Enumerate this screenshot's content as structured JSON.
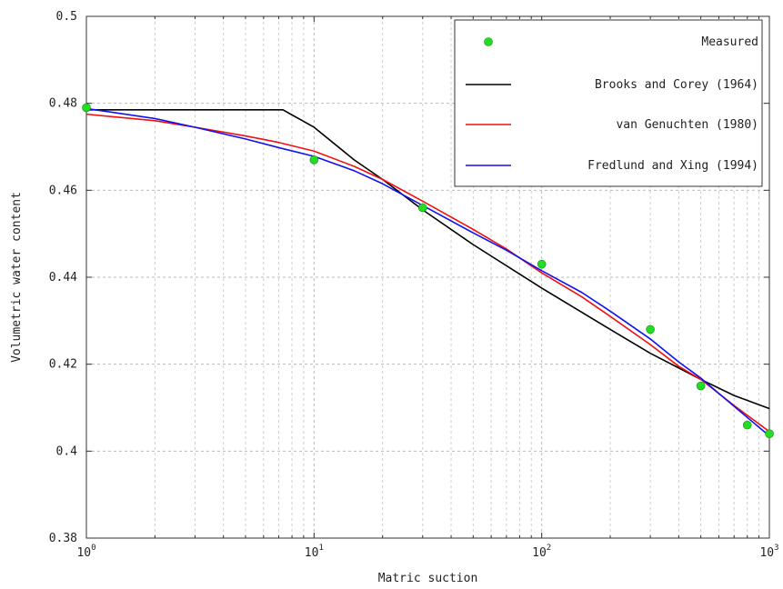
{
  "chart_data": {
    "type": "line",
    "title": "",
    "xlabel": "Matric suction",
    "ylabel": "Volumetric water content",
    "x_scale": "log",
    "xlim": [
      1,
      1000
    ],
    "ylim": [
      0.38,
      0.5
    ],
    "x_ticks": [
      1,
      10,
      100,
      1000
    ],
    "x_tick_labels": [
      {
        "base": "10",
        "exp": "0"
      },
      {
        "base": "10",
        "exp": "1"
      },
      {
        "base": "10",
        "exp": "2"
      },
      {
        "base": "10",
        "exp": "3"
      }
    ],
    "y_ticks": [
      0.38,
      0.4,
      0.42,
      0.44,
      0.46,
      0.48,
      0.5
    ],
    "y_tick_labels": [
      "0.38",
      "0.4",
      "0.42",
      "0.44",
      "0.46",
      "0.48",
      "0.5"
    ],
    "grid": true,
    "legend_position": "top-right",
    "measured": {
      "name": "Measured",
      "color": "#22dd22",
      "points": [
        [
          1,
          0.479
        ],
        [
          10,
          0.467
        ],
        [
          30,
          0.456
        ],
        [
          100,
          0.443
        ],
        [
          300,
          0.428
        ],
        [
          500,
          0.415
        ],
        [
          800,
          0.406
        ],
        [
          1000,
          0.404
        ]
      ]
    },
    "series": [
      {
        "name": "Brooks and Corey (1964)",
        "color": "#000000",
        "points": [
          [
            1,
            0.4785
          ],
          [
            7.3,
            0.4785
          ],
          [
            10,
            0.4745
          ],
          [
            15,
            0.467
          ],
          [
            20,
            0.4625
          ],
          [
            30,
            0.4555
          ],
          [
            50,
            0.4475
          ],
          [
            100,
            0.4375
          ],
          [
            200,
            0.428
          ],
          [
            300,
            0.4225
          ],
          [
            500,
            0.4165
          ],
          [
            700,
            0.4128
          ],
          [
            1000,
            0.4098
          ]
        ]
      },
      {
        "name": "van Genuchten (1980)",
        "color": "#ee1111",
        "points": [
          [
            1,
            0.4775
          ],
          [
            2,
            0.476
          ],
          [
            3,
            0.4745
          ],
          [
            5,
            0.4725
          ],
          [
            7,
            0.471
          ],
          [
            10,
            0.469
          ],
          [
            15,
            0.4655
          ],
          [
            20,
            0.4625
          ],
          [
            30,
            0.4575
          ],
          [
            50,
            0.451
          ],
          [
            70,
            0.4465
          ],
          [
            100,
            0.441
          ],
          [
            150,
            0.4355
          ],
          [
            200,
            0.431
          ],
          [
            300,
            0.4245
          ],
          [
            400,
            0.4195
          ],
          [
            500,
            0.4165
          ],
          [
            700,
            0.4105
          ],
          [
            1000,
            0.4045
          ]
        ]
      },
      {
        "name": "Fredlund and Xing (1994)",
        "color": "#1111ee",
        "points": [
          [
            1,
            0.4788
          ],
          [
            2,
            0.4765
          ],
          [
            3,
            0.4745
          ],
          [
            5,
            0.4718
          ],
          [
            7,
            0.4698
          ],
          [
            10,
            0.4678
          ],
          [
            15,
            0.4645
          ],
          [
            20,
            0.4615
          ],
          [
            30,
            0.4565
          ],
          [
            50,
            0.4502
          ],
          [
            70,
            0.4462
          ],
          [
            100,
            0.4415
          ],
          [
            150,
            0.4365
          ],
          [
            200,
            0.4322
          ],
          [
            300,
            0.4258
          ],
          [
            400,
            0.4205
          ],
          [
            500,
            0.4168
          ],
          [
            700,
            0.4103
          ],
          [
            1000,
            0.4035
          ]
        ]
      }
    ]
  }
}
